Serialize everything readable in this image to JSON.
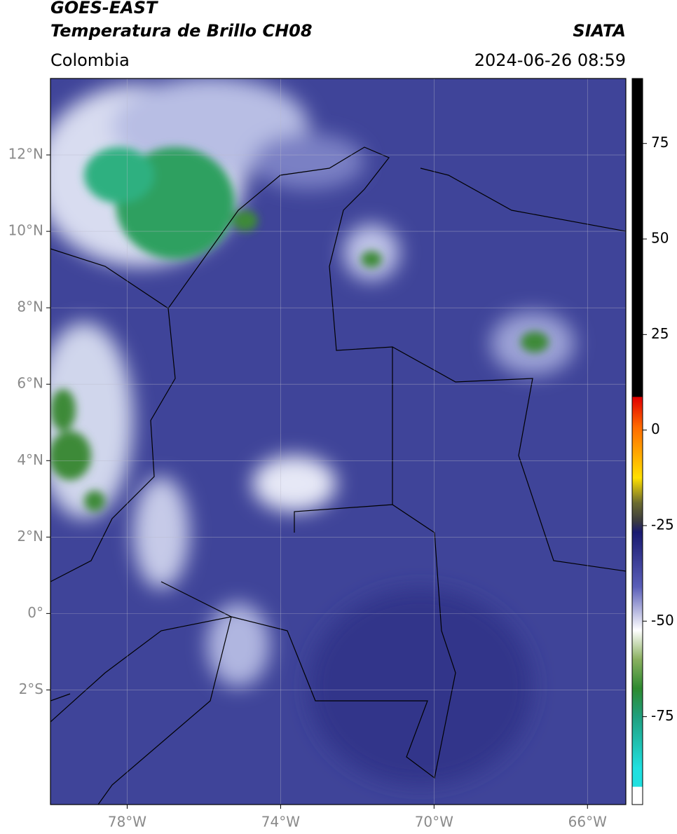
{
  "header": {
    "title": "GOES-EAST",
    "subtitle": "Temperatura de Brillo CH08",
    "region": "Colombia",
    "source": "SIATA",
    "datetime": "2024-06-26 08:59"
  },
  "map": {
    "lon_range": [
      -80,
      -65
    ],
    "lat_range": [
      -5,
      14
    ],
    "lon_ticks": [
      {
        "value": -78,
        "label": "78°W"
      },
      {
        "value": -74,
        "label": "74°W"
      },
      {
        "value": -70,
        "label": "70°W"
      },
      {
        "value": -66,
        "label": "66°W"
      }
    ],
    "lat_ticks": [
      {
        "value": 12,
        "label": "12°N"
      },
      {
        "value": 10,
        "label": "10°N"
      },
      {
        "value": 8,
        "label": "8°N"
      },
      {
        "value": 6,
        "label": "6°N"
      },
      {
        "value": 4,
        "label": "4°N"
      },
      {
        "value": 2,
        "label": "2°N"
      },
      {
        "value": 0,
        "label": "0°"
      },
      {
        "value": -2,
        "label": "2°S"
      }
    ]
  },
  "colorbar": {
    "range": [
      -98,
      92
    ],
    "ticks": [
      75,
      50,
      25,
      0,
      -25,
      -50,
      -75
    ]
  }
}
